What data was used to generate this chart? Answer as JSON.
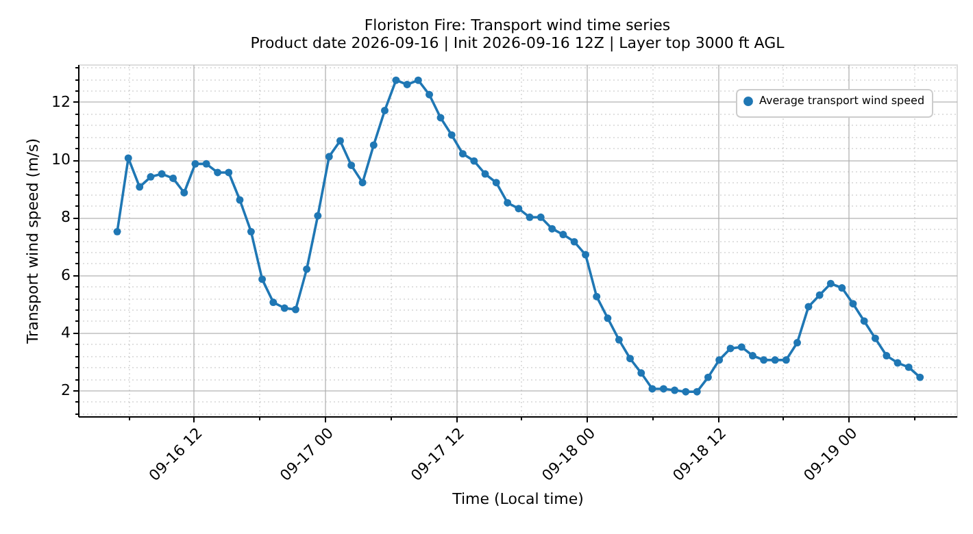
{
  "chart_data": {
    "type": "line",
    "title": "Floriston Fire: Transport wind time series",
    "subtitle": "Product date 2026-09-16 | Init 2026-09-16 12Z | Layer top 3000 ft AGL",
    "xlabel": "Time (Local time)",
    "ylabel": "Transport wind speed (m/s)",
    "x": [
      "2026-09-16T04:59",
      "2026-09-16T06:00",
      "2026-09-16T07:02",
      "2026-09-16T08:03",
      "2026-09-16T09:04",
      "2026-09-16T10:06",
      "2026-09-16T11:07",
      "2026-09-16T12:08",
      "2026-09-16T13:09",
      "2026-09-16T14:11",
      "2026-09-16T15:12",
      "2026-09-16T16:13",
      "2026-09-16T17:15",
      "2026-09-16T18:16",
      "2026-09-16T19:17",
      "2026-09-16T20:19",
      "2026-09-16T21:20",
      "2026-09-16T22:21",
      "2026-09-16T23:22",
      "2026-09-17T00:24",
      "2026-09-17T01:25",
      "2026-09-17T02:26",
      "2026-09-17T03:28",
      "2026-09-17T04:29",
      "2026-09-17T05:30",
      "2026-09-17T06:32",
      "2026-09-17T07:33",
      "2026-09-17T08:34",
      "2026-09-17T09:35",
      "2026-09-17T10:37",
      "2026-09-17T11:38",
      "2026-09-17T12:39",
      "2026-09-17T13:41",
      "2026-09-17T14:42",
      "2026-09-17T15:43",
      "2026-09-17T16:45",
      "2026-09-17T17:46",
      "2026-09-17T18:47",
      "2026-09-17T19:48",
      "2026-09-17T20:50",
      "2026-09-17T21:51",
      "2026-09-17T22:52",
      "2026-09-17T23:54",
      "2026-09-18T00:55",
      "2026-09-18T01:56",
      "2026-09-18T02:58",
      "2026-09-18T03:59",
      "2026-09-18T05:00",
      "2026-09-18T06:01",
      "2026-09-18T07:03",
      "2026-09-18T08:04",
      "2026-09-18T09:05",
      "2026-09-18T10:07",
      "2026-09-18T11:08",
      "2026-09-18T12:09",
      "2026-09-18T13:11",
      "2026-09-18T14:12",
      "2026-09-18T15:13",
      "2026-09-18T16:14",
      "2026-09-18T17:16",
      "2026-09-18T18:17",
      "2026-09-18T19:18",
      "2026-09-18T20:20",
      "2026-09-18T21:21",
      "2026-09-18T22:22",
      "2026-09-18T23:24",
      "2026-09-19T00:25",
      "2026-09-19T01:26",
      "2026-09-19T02:27",
      "2026-09-19T03:29",
      "2026-09-19T04:30",
      "2026-09-19T05:31",
      "2026-09-19T06:33"
    ],
    "series": [
      {
        "name": "Average transport wind speed",
        "color": "#1f77b4",
        "values": [
          7.5,
          10.05,
          9.05,
          9.4,
          9.5,
          9.35,
          8.85,
          9.85,
          9.85,
          9.55,
          9.55,
          8.6,
          7.5,
          5.85,
          5.05,
          4.85,
          4.8,
          6.2,
          8.05,
          10.1,
          10.65,
          9.8,
          9.2,
          10.5,
          11.7,
          12.75,
          12.6,
          12.75,
          12.25,
          11.45,
          10.85,
          10.2,
          9.95,
          9.5,
          9.2,
          8.5,
          8.3,
          8.0,
          8.0,
          7.6,
          7.4,
          7.15,
          6.7,
          5.25,
          4.5,
          3.75,
          3.1,
          2.6,
          2.05,
          2.05,
          2.0,
          1.95,
          1.95,
          2.45,
          3.05,
          3.45,
          3.5,
          3.2,
          3.05,
          3.05,
          3.05,
          3.65,
          4.9,
          5.3,
          5.7,
          5.55,
          5.0,
          4.4,
          3.8,
          3.2,
          2.95,
          2.8,
          2.45
        ]
      }
    ],
    "xlim": [
      "2026-09-16T01:24",
      "2026-09-19T09:54"
    ],
    "xticks": [
      {
        "value": "2026-09-16T06:00",
        "label": null
      },
      {
        "value": "2026-09-16T12:00",
        "label": "09-16 12"
      },
      {
        "value": "2026-09-16T18:00",
        "label": null
      },
      {
        "value": "2026-09-17T00:00",
        "label": "09-17 00"
      },
      {
        "value": "2026-09-17T06:00",
        "label": null
      },
      {
        "value": "2026-09-17T12:00",
        "label": "09-17 12"
      },
      {
        "value": "2026-09-17T18:00",
        "label": null
      },
      {
        "value": "2026-09-18T00:00",
        "label": "09-18 00"
      },
      {
        "value": "2026-09-18T06:00",
        "label": null
      },
      {
        "value": "2026-09-18T12:00",
        "label": "09-18 12"
      },
      {
        "value": "2026-09-18T18:00",
        "label": null
      },
      {
        "value": "2026-09-19T00:00",
        "label": "09-19 00"
      },
      {
        "value": "2026-09-19T06:00",
        "label": null
      }
    ],
    "ylim": [
      1.1,
      13.3
    ],
    "yticks": [
      {
        "value": 1.2,
        "label": null
      },
      {
        "value": 1.6,
        "label": null
      },
      2,
      {
        "value": 2.4,
        "label": null
      },
      {
        "value": 2.8,
        "label": null
      },
      {
        "value": 3.2,
        "label": null
      },
      {
        "value": 3.6,
        "label": null
      },
      4,
      {
        "value": 4.4,
        "label": null
      },
      {
        "value": 4.8,
        "label": null
      },
      {
        "value": 5.2,
        "label": null
      },
      {
        "value": 5.6,
        "label": null
      },
      6,
      {
        "value": 6.4,
        "label": null
      },
      {
        "value": 6.8,
        "label": null
      },
      {
        "value": 7.2,
        "label": null
      },
      {
        "value": 7.6,
        "label": null
      },
      8,
      {
        "value": 8.4,
        "label": null
      },
      {
        "value": 8.8,
        "label": null
      },
      {
        "value": 9.2,
        "label": null
      },
      {
        "value": 9.6,
        "label": null
      },
      10,
      {
        "value": 10.4,
        "label": null
      },
      {
        "value": 10.8,
        "label": null
      },
      {
        "value": 11.2,
        "label": null
      },
      {
        "value": 11.6,
        "label": null
      },
      12,
      {
        "value": 12.4,
        "label": null
      },
      {
        "value": 12.8,
        "label": null
      },
      {
        "value": 13.2,
        "label": null
      }
    ],
    "grid": true,
    "legend": "top right",
    "marker": "circle",
    "line_style": "solid"
  }
}
